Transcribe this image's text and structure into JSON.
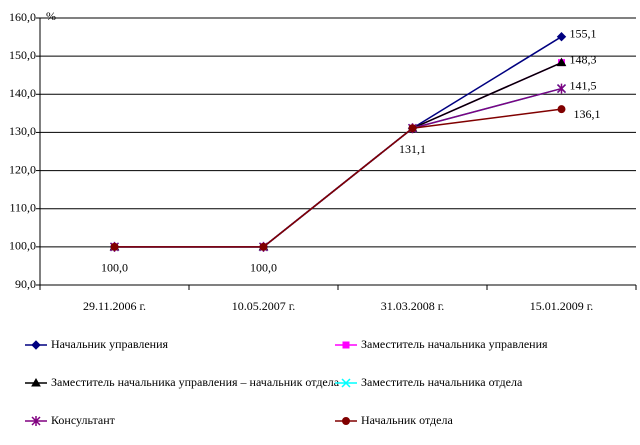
{
  "chart_data": {
    "type": "line",
    "y_label": "%",
    "categories": [
      "29.11.2006 г.",
      "10.05.2007 г.",
      "31.03.2008 г.",
      "15.01.2009 г."
    ],
    "ylim": [
      90,
      160
    ],
    "yticks": [
      {
        "value": 90,
        "label": "90,0"
      },
      {
        "value": 100,
        "label": "100,0"
      },
      {
        "value": 110,
        "label": "110,0"
      },
      {
        "value": 120,
        "label": "120,0"
      },
      {
        "value": 130,
        "label": "130,0"
      },
      {
        "value": 140,
        "label": "140,0"
      },
      {
        "value": 150,
        "label": "150,0"
      },
      {
        "value": 160,
        "label": "160,0"
      }
    ],
    "grid": true,
    "legend": "bottom",
    "series": [
      {
        "name": "Начальник управления",
        "color": "#000080",
        "marker": "diamond",
        "values": [
          100,
          100,
          131.1,
          155.1
        ],
        "value_labels": [
          null,
          null,
          null,
          "155,1"
        ]
      },
      {
        "name": "Заместитель начальника управления",
        "color": "#ff00ff",
        "marker": "square",
        "values": [
          100,
          100,
          131.1,
          148.3
        ]
      },
      {
        "name": "Заместитель начальника управления – начальник отдела",
        "color": "#000000",
        "marker": "triangle",
        "values": [
          100,
          100,
          131.1,
          148.3
        ],
        "value_labels": [
          null,
          null,
          null,
          "148,3"
        ]
      },
      {
        "name": "Заместитель начальника отдела",
        "color": "#00ffff",
        "marker": "x",
        "values": [
          100,
          100,
          131.1,
          141.5
        ]
      },
      {
        "name": "Консультант",
        "color": "#800080",
        "marker": "star",
        "values": [
          100,
          100,
          131.1,
          141.5
        ],
        "value_labels": [
          null,
          null,
          null,
          "141,5"
        ]
      },
      {
        "name": "Начальник отдела",
        "color": "#800000",
        "marker": "circle",
        "values": [
          100,
          100,
          131.1,
          136.1
        ],
        "value_labels": [
          "100,0",
          "100,0",
          "131,1",
          "136,1"
        ]
      }
    ]
  }
}
